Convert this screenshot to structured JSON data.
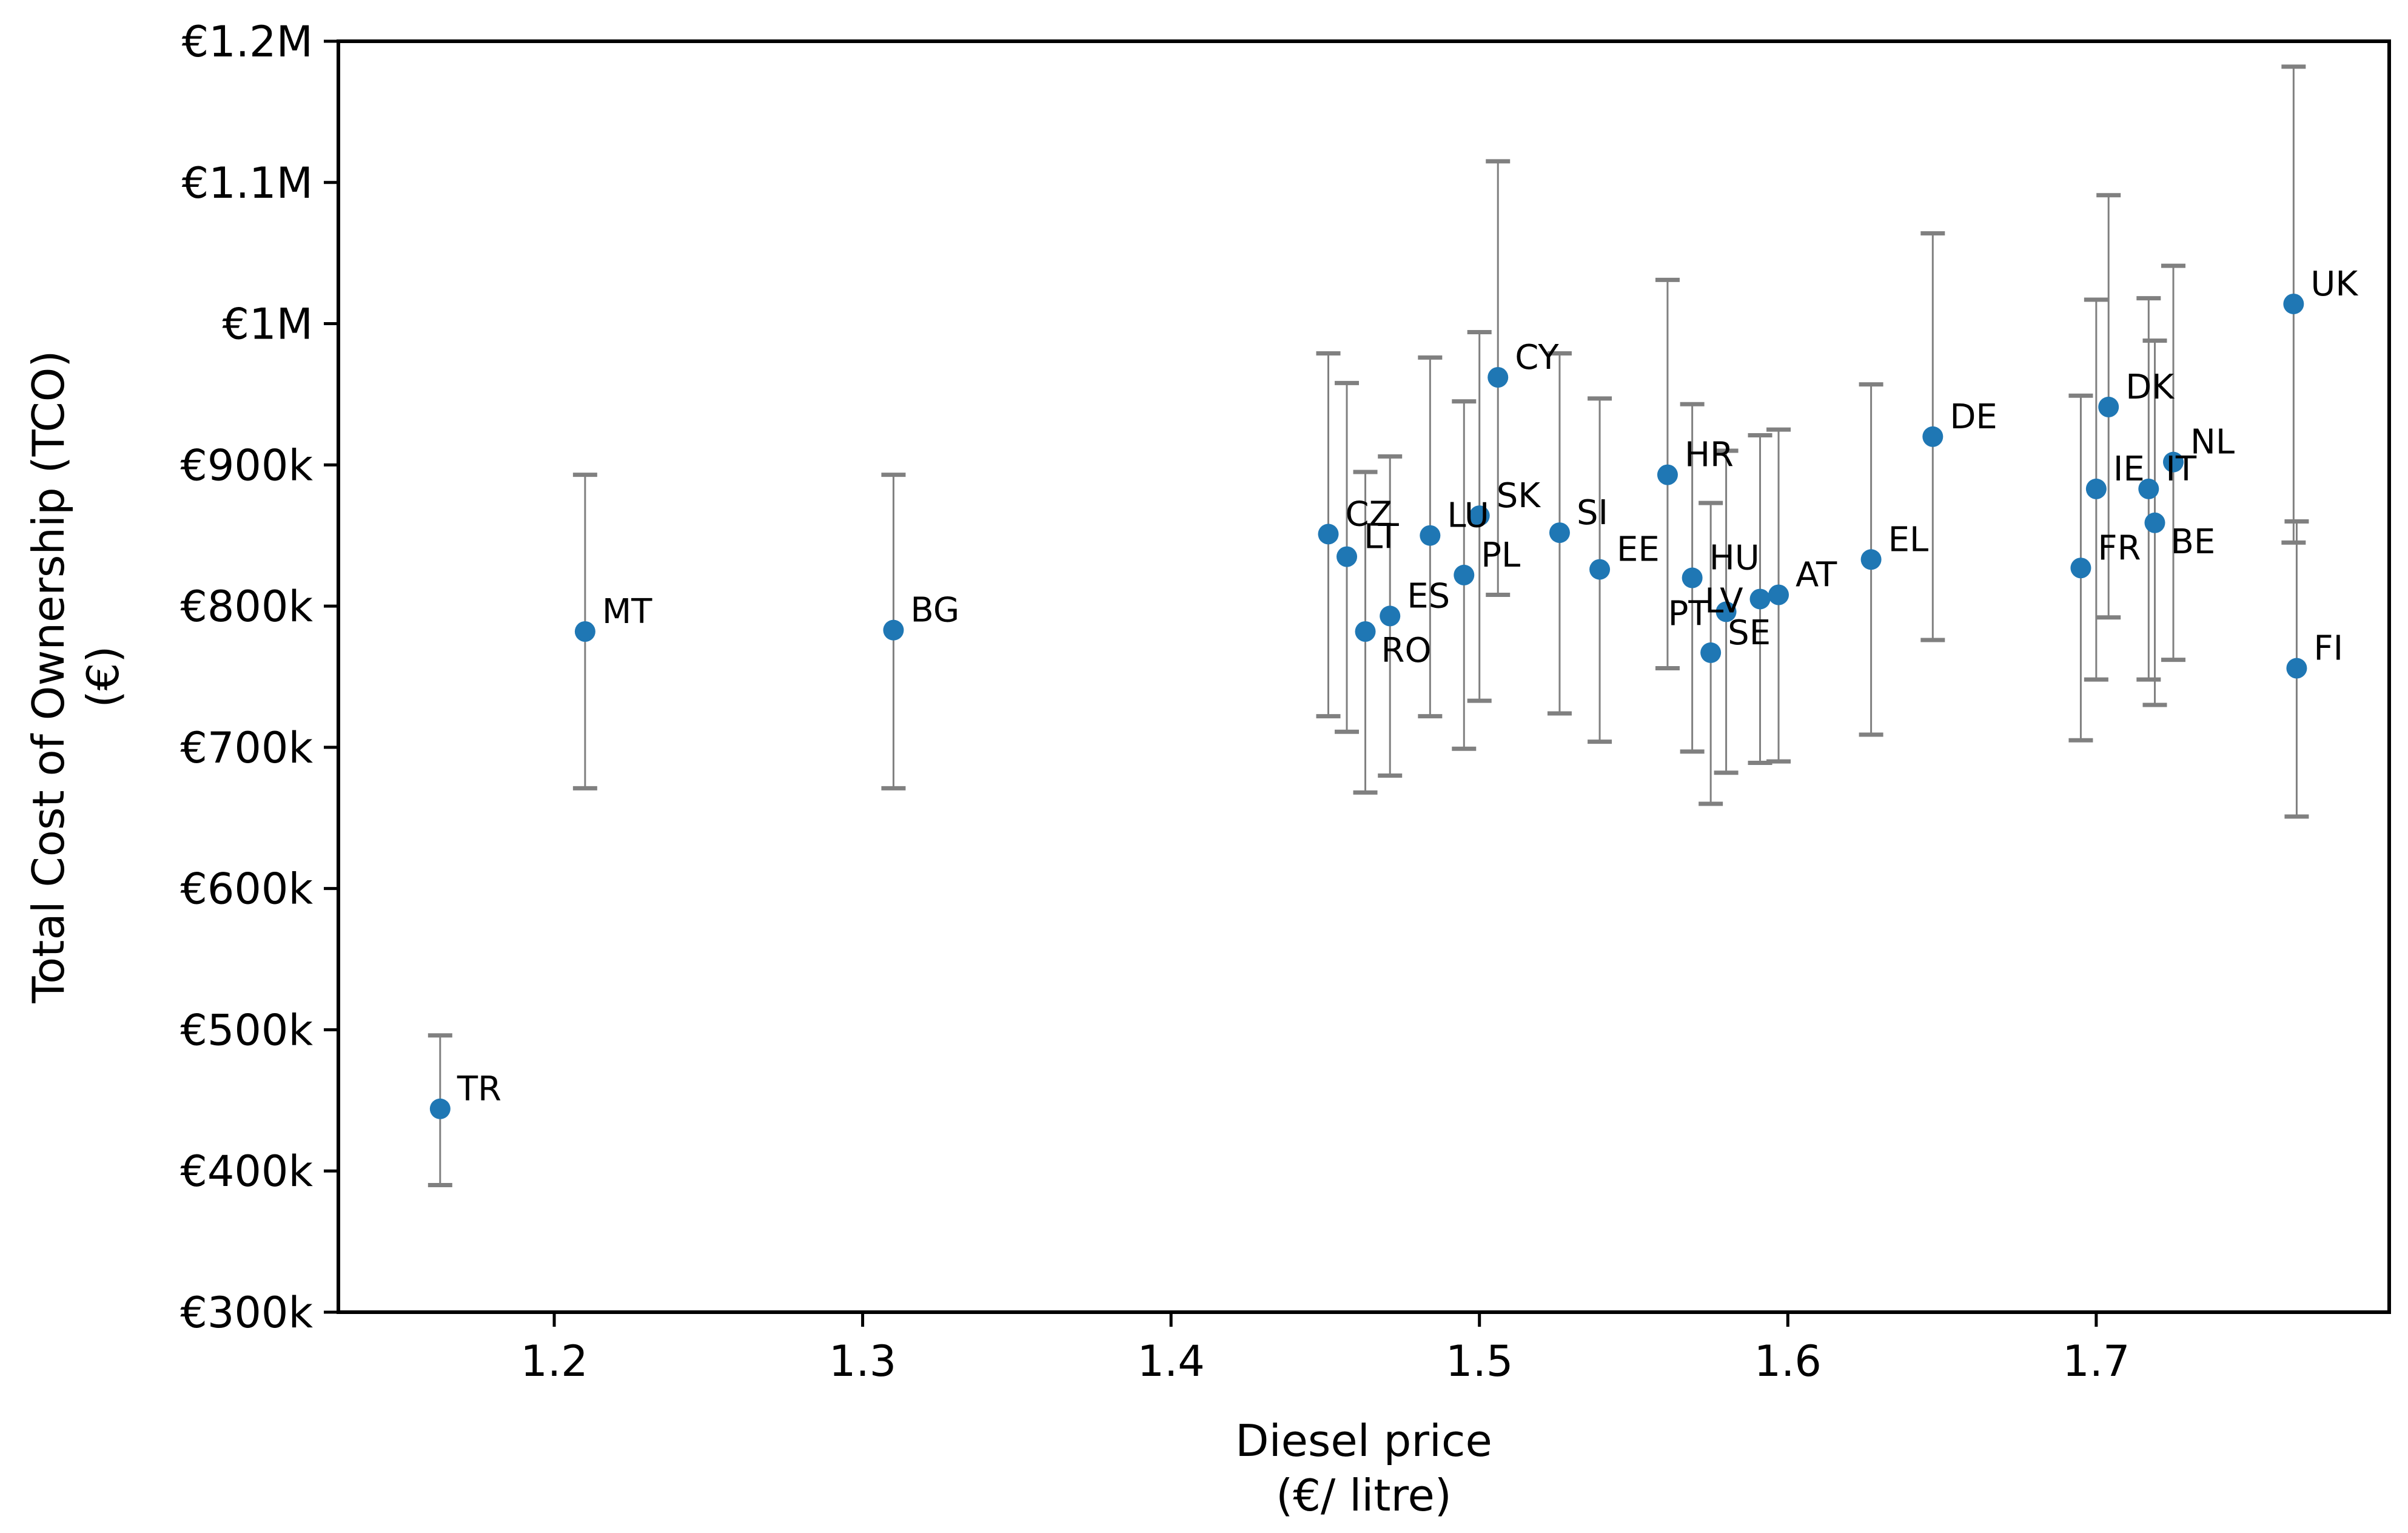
{
  "chart_data": {
    "type": "scatter",
    "title": "",
    "xlabel": [
      "Diesel price",
      "(€/ litre)"
    ],
    "ylabel": [
      "Total Cost of Ownership (TCO)",
      "(€)"
    ],
    "xlim": [
      1.13,
      1.795
    ],
    "ylim": [
      300000,
      1200000
    ],
    "x_ticks": [
      1.2,
      1.3,
      1.4,
      1.5,
      1.6,
      1.7
    ],
    "x_tick_labels": [
      "1.2",
      "1.3",
      "1.4",
      "1.5",
      "1.6",
      "1.7"
    ],
    "y_ticks": [
      300000,
      400000,
      500000,
      600000,
      700000,
      800000,
      900000,
      1000000,
      1100000,
      1200000
    ],
    "y_tick_labels": [
      "€300k",
      "€400k",
      "€500k",
      "€600k",
      "€700k",
      "€800k",
      "€900k",
      "€1M",
      "€1.1M",
      "€1.2M"
    ],
    "grid": false,
    "colors": {
      "point": "#1f77b4",
      "errorbar": "#808080",
      "axis": "#000000"
    },
    "points": [
      {
        "label": "TR",
        "x": 1.163,
        "y": 444000,
        "low": 390000,
        "high": 496000,
        "anchor": "right"
      },
      {
        "label": "MT",
        "x": 1.21,
        "y": 782000,
        "low": 671000,
        "high": 893000,
        "anchor": "right"
      },
      {
        "label": "BG",
        "x": 1.31,
        "y": 783000,
        "low": 671000,
        "high": 893000,
        "anchor": "right"
      },
      {
        "label": "CZ",
        "x": 1.451,
        "y": 851000,
        "low": 722000,
        "high": 979000,
        "anchor": "right"
      },
      {
        "label": "LT",
        "x": 1.457,
        "y": 835000,
        "low": 711000,
        "high": 958000,
        "anchor": "right"
      },
      {
        "label": "RO",
        "x": 1.463,
        "y": 782000,
        "low": 668000,
        "high": 895000,
        "anchor": "below-right"
      },
      {
        "label": "ES",
        "x": 1.471,
        "y": 793000,
        "low": 680000,
        "high": 906000,
        "anchor": "right"
      },
      {
        "label": "LU",
        "x": 1.484,
        "y": 850000,
        "low": 722000,
        "high": 976000,
        "anchor": "right"
      },
      {
        "label": "PL",
        "x": 1.495,
        "y": 822000,
        "low": 699000,
        "high": 945000,
        "anchor": "right"
      },
      {
        "label": "SK",
        "x": 1.5,
        "y": 864000,
        "low": 733000,
        "high": 994000,
        "anchor": "right"
      },
      {
        "label": "CY",
        "x": 1.506,
        "y": 962000,
        "low": 808000,
        "high": 1115000,
        "anchor": "right"
      },
      {
        "label": "SI",
        "x": 1.526,
        "y": 852000,
        "low": 724000,
        "high": 979000,
        "anchor": "right"
      },
      {
        "label": "EE",
        "x": 1.539,
        "y": 826000,
        "low": 704000,
        "high": 947000,
        "anchor": "right"
      },
      {
        "label": "HR",
        "x": 1.561,
        "y": 893000,
        "low": 756000,
        "high": 1031000,
        "anchor": "right"
      },
      {
        "label": "HU",
        "x": 1.569,
        "y": 820000,
        "low": 697000,
        "high": 943000,
        "anchor": "right"
      },
      {
        "label": "SE",
        "x": 1.575,
        "y": 767000,
        "low": 660000,
        "high": 873000,
        "anchor": "right"
      },
      {
        "label": "PT",
        "x": 1.58,
        "y": 796000,
        "low": 682000,
        "high": 910000,
        "anchor": "left"
      },
      {
        "label": "LV",
        "x": 1.591,
        "y": 805000,
        "low": 689000,
        "high": 921000,
        "anchor": "left"
      },
      {
        "label": "AT",
        "x": 1.597,
        "y": 808000,
        "low": 690000,
        "high": 925000,
        "anchor": "right"
      },
      {
        "label": "EL",
        "x": 1.627,
        "y": 833000,
        "low": 709000,
        "high": 957000,
        "anchor": "right"
      },
      {
        "label": "DE",
        "x": 1.647,
        "y": 920000,
        "low": 776000,
        "high": 1064000,
        "anchor": "right"
      },
      {
        "label": "FR",
        "x": 1.695,
        "y": 827000,
        "low": 705000,
        "high": 949000,
        "anchor": "right"
      },
      {
        "label": "IE",
        "x": 1.7,
        "y": 883000,
        "low": 748000,
        "high": 1017000,
        "anchor": "right"
      },
      {
        "label": "DK",
        "x": 1.704,
        "y": 941000,
        "low": 792000,
        "high": 1091000,
        "anchor": "right"
      },
      {
        "label": "IT",
        "x": 1.717,
        "y": 883000,
        "low": 748000,
        "high": 1018000,
        "anchor": "right"
      },
      {
        "label": "BE",
        "x": 1.719,
        "y": 859000,
        "low": 730000,
        "high": 988000,
        "anchor": "below-right"
      },
      {
        "label": "NL",
        "x": 1.725,
        "y": 902000,
        "low": 762000,
        "high": 1041000,
        "anchor": "right"
      },
      {
        "label": "UK",
        "x": 1.764,
        "y": 1014000,
        "low": 845000,
        "high": 1182000,
        "anchor": "right"
      },
      {
        "label": "FI",
        "x": 1.765,
        "y": 756000,
        "low": 651000,
        "high": 860000,
        "anchor": "right"
      }
    ]
  }
}
